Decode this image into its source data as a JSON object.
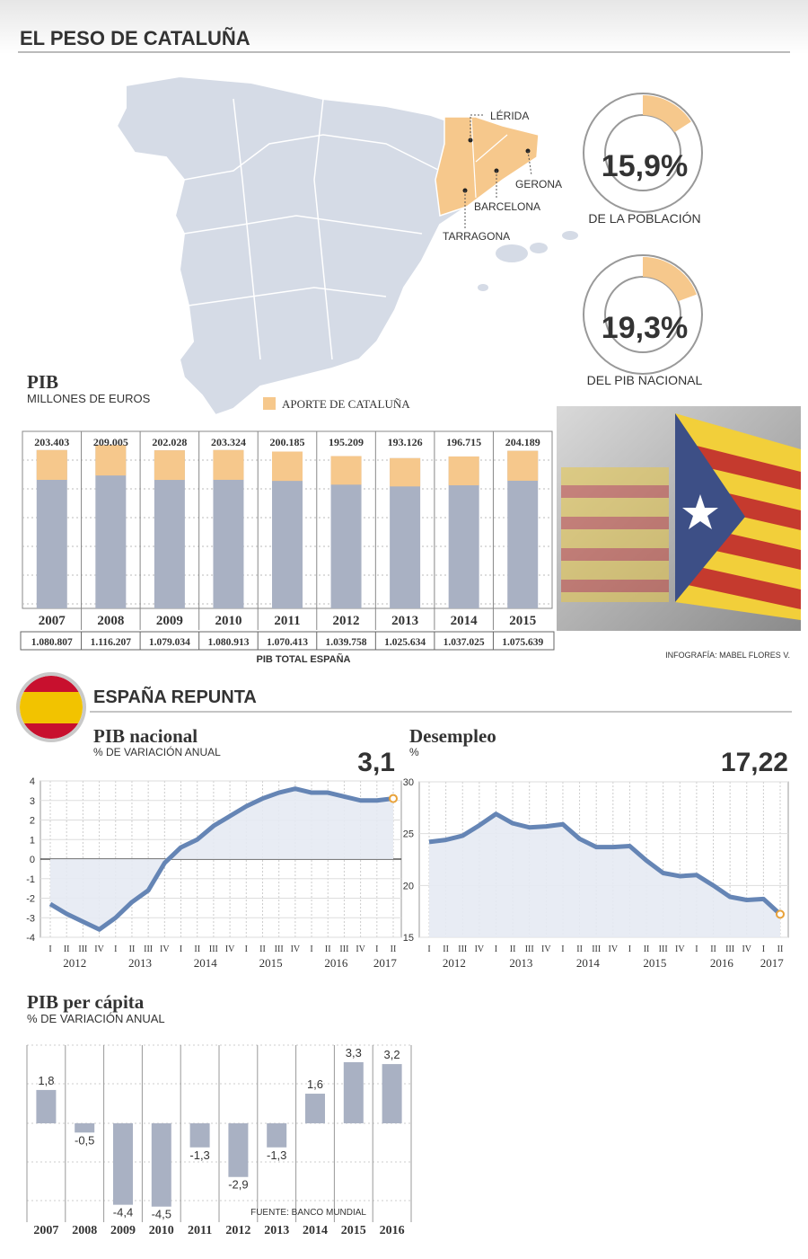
{
  "header": {
    "title": "EL PESO DE CATALUÑA"
  },
  "map": {
    "labels": [
      "LÉRIDA",
      "GERONA",
      "BARCELONA",
      "TARRAGONA"
    ]
  },
  "section": {
    "title": "ESPAÑA REPUNTA"
  },
  "chart_data": [
    {
      "type": "donut",
      "values": [
        15.9
      ],
      "value_labels": [
        "15,9%"
      ],
      "caption": "DE LA POBLACIÓN",
      "color": "#f6c88c"
    },
    {
      "type": "donut",
      "values": [
        19.3
      ],
      "value_labels": [
        "19,3%"
      ],
      "caption": "DEL PIB NACIONAL",
      "color": "#f6c88c"
    },
    {
      "type": "bar",
      "title": "PIB",
      "subtitle": "MILLONES DE EUROS",
      "categories": [
        "2007",
        "2008",
        "2009",
        "2010",
        "2011",
        "2012",
        "2013",
        "2014",
        "2015"
      ],
      "series": [
        {
          "name": "PIB TOTAL ESPAÑA",
          "color": "#a9b1c3",
          "values": [
            1080807,
            1116207,
            1079034,
            1080913,
            1070413,
            1039758,
            1025634,
            1037025,
            1075639
          ],
          "value_labels": [
            "1.080.807",
            "1.116.207",
            "1.079.034",
            "1.080.913",
            "1.070.413",
            "1.039.758",
            "1.025.634",
            "1.037.025",
            "1.075.639"
          ]
        },
        {
          "name": "APORTE DE CATALUÑA",
          "color": "#f6c88c",
          "values": [
            203403,
            209005,
            202028,
            203324,
            200185,
            195209,
            193126,
            196715,
            204189
          ],
          "value_labels": [
            "203.403",
            "209.005",
            "202.028",
            "203.324",
            "200.185",
            "195.209",
            "193.126",
            "196.715",
            "204.189"
          ]
        }
      ],
      "credit": "INFOGRAFÍA: MABEL FLORES V."
    },
    {
      "type": "line",
      "title": "PIB nacional",
      "subtitle": "% DE VARIACIÓN ANUAL",
      "categories": [
        "I",
        "II",
        "III",
        "IV",
        "I",
        "II",
        "III",
        "IV",
        "I",
        "II",
        "III",
        "IV",
        "I",
        "II",
        "III",
        "IV",
        "I",
        "II",
        "III",
        "IV",
        "I",
        "II"
      ],
      "year_labels": [
        "2012",
        "2013",
        "2014",
        "2015",
        "2016",
        "2017"
      ],
      "values": [
        -2.3,
        -2.8,
        -3.2,
        -3.6,
        -3.0,
        -2.2,
        -1.6,
        -0.2,
        0.6,
        1.0,
        1.7,
        2.2,
        2.7,
        3.1,
        3.4,
        3.6,
        3.4,
        3.4,
        3.2,
        3.0,
        3.0,
        3.1
      ],
      "value_labels": [
        null,
        null,
        null,
        null,
        null,
        null,
        null,
        null,
        null,
        null,
        null,
        null,
        null,
        null,
        null,
        null,
        null,
        null,
        null,
        null,
        null,
        "3,1"
      ],
      "color": "#6585b5",
      "ylim": [
        -4,
        4
      ],
      "yticks": [
        4,
        3,
        2,
        1,
        0,
        -1,
        -2,
        -3,
        -4
      ]
    },
    {
      "type": "line",
      "title": "Desempleo",
      "subtitle": "%",
      "categories": [
        "I",
        "II",
        "III",
        "IV",
        "I",
        "II",
        "III",
        "IV",
        "I",
        "II",
        "III",
        "IV",
        "I",
        "II",
        "III",
        "IV",
        "I",
        "II",
        "III",
        "IV",
        "I",
        "II"
      ],
      "year_labels": [
        "2012",
        "2013",
        "2014",
        "2015",
        "2016",
        "2017"
      ],
      "values": [
        24.2,
        24.4,
        24.8,
        25.8,
        26.9,
        26.0,
        25.6,
        25.7,
        25.9,
        24.5,
        23.7,
        23.7,
        23.8,
        22.4,
        21.2,
        20.9,
        21.0,
        20.0,
        18.9,
        18.6,
        18.7,
        17.22
      ],
      "value_labels": [
        null,
        null,
        null,
        null,
        null,
        null,
        null,
        null,
        null,
        null,
        null,
        null,
        null,
        null,
        null,
        null,
        null,
        null,
        null,
        null,
        null,
        "17,22"
      ],
      "color": "#6585b5",
      "ylim": [
        15,
        30
      ],
      "yticks": [
        30,
        25,
        20,
        15
      ]
    },
    {
      "type": "bar",
      "title": "PIB per cápita",
      "subtitle": "% DE VARIACIÓN ANUAL",
      "categories": [
        "2007",
        "2008",
        "2009",
        "2010",
        "2011",
        "2012",
        "2013",
        "2014",
        "2015",
        "2016"
      ],
      "values": [
        1.8,
        -0.5,
        -4.4,
        -4.5,
        -1.3,
        -2.9,
        -1.3,
        1.6,
        3.3,
        3.2
      ],
      "value_labels": [
        "1,8",
        "-0,5",
        "-4,4",
        "-4,5",
        "-1,3",
        "-2,9",
        "-1,3",
        "1,6",
        "3,3",
        "3,2"
      ],
      "color": "#a9b1c3",
      "source": "FUENTE: BANCO MUNDIAL"
    }
  ]
}
